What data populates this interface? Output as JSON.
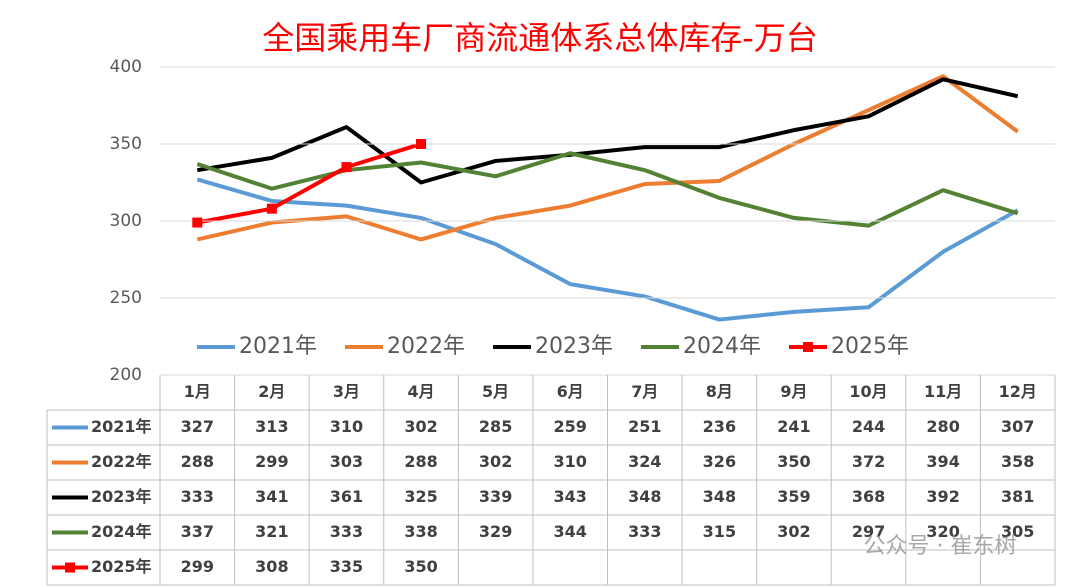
{
  "chart_data": {
    "type": "line",
    "title": "全国乘用车厂商流通体系总体库存-万台",
    "categories": [
      "1月",
      "2月",
      "3月",
      "4月",
      "5月",
      "6月",
      "7月",
      "8月",
      "9月",
      "10月",
      "11月",
      "12月"
    ],
    "series": [
      {
        "name": "2021年",
        "color": "#5b9bd5",
        "values": [
          327,
          313,
          310,
          302,
          285,
          259,
          251,
          236,
          241,
          244,
          280,
          307
        ]
      },
      {
        "name": "2022年",
        "color": "#ed7d31",
        "values": [
          288,
          299,
          303,
          288,
          302,
          310,
          324,
          326,
          350,
          372,
          394,
          358
        ]
      },
      {
        "name": "2023年",
        "color": "#000000",
        "values": [
          333,
          341,
          361,
          325,
          339,
          343,
          348,
          348,
          359,
          368,
          392,
          381
        ]
      },
      {
        "name": "2024年",
        "color": "#548235",
        "values": [
          337,
          321,
          333,
          338,
          329,
          344,
          333,
          315,
          302,
          297,
          320,
          305
        ]
      },
      {
        "name": "2025年",
        "color": "#ff0000",
        "marker": "square",
        "values": [
          299,
          308,
          335,
          350,
          null,
          null,
          null,
          null,
          null,
          null,
          null,
          null
        ]
      }
    ],
    "ylim": [
      200,
      400
    ],
    "yticks": [
      200,
      250,
      300,
      350,
      400
    ],
    "grid": true,
    "data_table": true,
    "watermark": "公众号 · 崔东树"
  }
}
